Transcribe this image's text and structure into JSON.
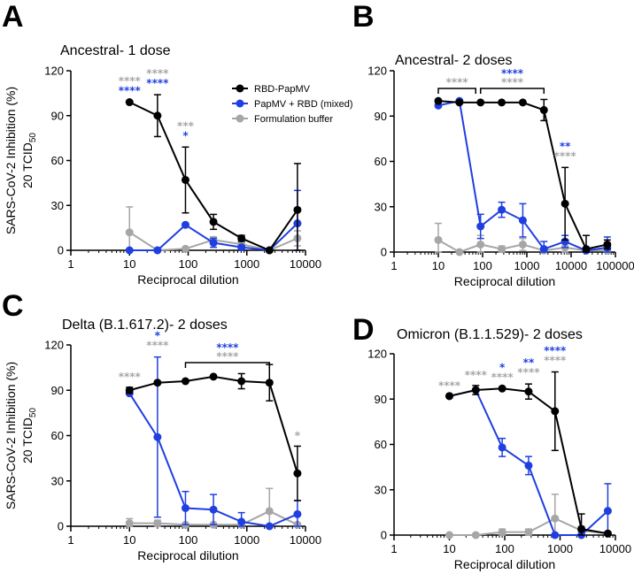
{
  "figure": {
    "y_axis_label": "SARS-CoV-2 Inhibition (%)",
    "y_axis_sublabel_main": "20 TCID",
    "y_axis_sublabel_sub": "50",
    "legend": [
      {
        "name": "RBD-PapMV",
        "color": "#000000"
      },
      {
        "name": "PapMV + RBD (mixed)",
        "color": "#1f3fe0"
      },
      {
        "name": "Formulation buffer",
        "color": "#a6a6a6"
      }
    ],
    "colors": {
      "black": "#000000",
      "blue": "#1f3fe0",
      "gray": "#a6a6a6"
    }
  },
  "chart_data": [
    {
      "panel": "A",
      "type": "line",
      "title": "Ancestral- 1 dose",
      "xlabel": "Reciprocal dilution",
      "ylabel": "SARS-CoV-2 Inhibition (%) 20 TCID50",
      "xscale": "log",
      "xlim": [
        1,
        10000
      ],
      "ylim": [
        0,
        120
      ],
      "xticks": [
        1,
        10,
        100,
        1000,
        10000
      ],
      "yticks": [
        0,
        30,
        60,
        90,
        120
      ],
      "series": [
        {
          "name": "RBD-PapMV",
          "color": "#000000",
          "x": [
            10,
            30,
            90,
            270,
            810,
            2430,
            7290
          ],
          "y": [
            99,
            90,
            47,
            19,
            8,
            0,
            27
          ],
          "err": [
            0,
            14,
            22,
            5,
            2,
            0,
            31
          ]
        },
        {
          "name": "PapMV + RBD (mixed)",
          "color": "#1f3fe0",
          "x": [
            10,
            30,
            90,
            270,
            810,
            2430,
            7290
          ],
          "y": [
            0,
            0,
            17,
            5,
            2,
            0,
            18
          ],
          "err": [
            0,
            0,
            0,
            3,
            1,
            0,
            22
          ]
        },
        {
          "name": "Formulation buffer",
          "color": "#a6a6a6",
          "x": [
            10,
            30,
            90,
            270,
            810,
            2430,
            7290
          ],
          "y": [
            12,
            0,
            1,
            7,
            4,
            0,
            8
          ],
          "err": [
            17,
            0,
            0,
            2,
            1,
            0,
            5
          ]
        }
      ],
      "annotations": [
        {
          "x": 10,
          "top": "****",
          "top_color": "#a6a6a6",
          "bottom": "****",
          "bottom_color": "#1f3fe0"
        },
        {
          "x": 30,
          "top": "****",
          "top_color": "#a6a6a6",
          "bottom": "****",
          "bottom_color": "#1f3fe0"
        },
        {
          "x": 90,
          "top": "***",
          "top_color": "#a6a6a6",
          "bottom": "*",
          "bottom_color": "#1f3fe0"
        }
      ],
      "brackets": []
    },
    {
      "panel": "B",
      "type": "line",
      "title": "Ancestral- 2 doses",
      "xlabel": "Reciprocal dilution",
      "ylabel": "",
      "xscale": "log",
      "xlim": [
        1,
        100000
      ],
      "ylim": [
        0,
        120
      ],
      "xticks": [
        1,
        10,
        100,
        1000,
        10000,
        100000
      ],
      "yticks": [
        0,
        30,
        60,
        90,
        120
      ],
      "series": [
        {
          "name": "RBD-PapMV",
          "color": "#000000",
          "x": [
            10,
            30,
            90,
            270,
            810,
            2430,
            7290,
            21870,
            65610
          ],
          "y": [
            100,
            99,
            99,
            99,
            99,
            94,
            32,
            2,
            5
          ],
          "err": [
            0,
            0,
            0,
            0,
            0,
            7,
            24,
            9,
            3
          ]
        },
        {
          "name": "PapMV + RBD (mixed)",
          "color": "#1f3fe0",
          "x": [
            10,
            30,
            90,
            270,
            810,
            2430,
            7290,
            21870,
            65610
          ],
          "y": [
            97,
            100,
            17,
            28,
            21,
            2,
            7,
            1,
            3
          ],
          "err": [
            0,
            0,
            8,
            5,
            11,
            5,
            4,
            1,
            7
          ]
        },
        {
          "name": "Formulation buffer",
          "color": "#a6a6a6",
          "x": [
            10,
            30,
            90,
            270,
            810,
            2430,
            7290,
            21870,
            65610
          ],
          "y": [
            8,
            0,
            5,
            2,
            5,
            1,
            3,
            1,
            1
          ],
          "err": [
            11,
            0,
            6,
            2,
            4,
            1,
            3,
            1,
            1
          ]
        }
      ],
      "annotations": [
        {
          "x": 7290,
          "top": "**",
          "top_color": "#1f3fe0",
          "bottom": "****",
          "bottom_color": "#a6a6a6"
        }
      ],
      "brackets": [
        {
          "x1": 10,
          "x2": 70,
          "labels": [
            {
              "text": "****",
              "color": "#a6a6a6"
            }
          ]
        },
        {
          "x1": 90,
          "x2": 2430,
          "labels": [
            {
              "text": "****",
              "color": "#1f3fe0"
            },
            {
              "text": "****",
              "color": "#a6a6a6"
            }
          ]
        }
      ]
    },
    {
      "panel": "C",
      "type": "line",
      "title": "Delta (B.1.617.2)- 2 doses",
      "xlabel": "Reciprocal dilution",
      "ylabel": "SARS-CoV-2 Inhibition (%) 20 TCID50",
      "xscale": "log",
      "xlim": [
        1,
        10000
      ],
      "ylim": [
        0,
        120
      ],
      "xticks": [
        1,
        10,
        100,
        1000,
        10000
      ],
      "yticks": [
        0,
        30,
        60,
        90,
        120
      ],
      "series": [
        {
          "name": "RBD-PapMV",
          "color": "#000000",
          "x": [
            10,
            30,
            90,
            270,
            810,
            2430,
            7290
          ],
          "y": [
            90,
            95,
            96,
            99,
            96,
            95,
            35
          ],
          "err": [
            2,
            0,
            0,
            0,
            5,
            12,
            18
          ]
        },
        {
          "name": "PapMV + RBD (mixed)",
          "color": "#1f3fe0",
          "x": [
            10,
            30,
            90,
            270,
            810,
            2430,
            7290
          ],
          "y": [
            88,
            59,
            12,
            11,
            3,
            0,
            8
          ],
          "err": [
            0,
            53,
            11,
            10,
            6,
            0,
            9
          ]
        },
        {
          "name": "Formulation buffer",
          "color": "#a6a6a6",
          "x": [
            10,
            30,
            90,
            270,
            810,
            2430,
            7290
          ],
          "y": [
            2,
            2,
            1,
            1,
            1,
            10,
            1
          ],
          "err": [
            3,
            2,
            1,
            1,
            1,
            15,
            1
          ]
        }
      ],
      "annotations": [
        {
          "x": 10,
          "top": "****",
          "top_color": "#a6a6a6",
          "bottom": "",
          "bottom_color": "#a6a6a6"
        },
        {
          "x": 30,
          "top": "*",
          "top_color": "#1f3fe0",
          "bottom": "****",
          "bottom_color": "#a6a6a6"
        },
        {
          "x": 7290,
          "top": "*",
          "top_color": "#a6a6a6",
          "bottom": "",
          "bottom_color": "#a6a6a6"
        }
      ],
      "brackets": [
        {
          "x1": 90,
          "x2": 2430,
          "labels": [
            {
              "text": "****",
              "color": "#1f3fe0"
            },
            {
              "text": "****",
              "color": "#a6a6a6"
            }
          ]
        }
      ]
    },
    {
      "panel": "D",
      "type": "line",
      "title": "Omicron (B.1.1.529)- 2 doses",
      "xlabel": "Reciprocal dilution",
      "ylabel": "",
      "xscale": "log",
      "xlim": [
        1,
        10000
      ],
      "ylim": [
        0,
        120
      ],
      "xticks": [
        1,
        10,
        100,
        1000,
        10000
      ],
      "yticks": [
        0,
        30,
        60,
        90,
        120
      ],
      "series": [
        {
          "name": "RBD-PapMV",
          "color": "#000000",
          "x": [
            10,
            30,
            90,
            270,
            810,
            2430,
            7290
          ],
          "y": [
            92,
            96,
            97,
            95,
            82,
            4,
            1
          ],
          "err": [
            0,
            3,
            0,
            5,
            26,
            10,
            1
          ]
        },
        {
          "name": "PapMV + RBD (mixed)",
          "color": "#1f3fe0",
          "x": [
            10,
            30,
            90,
            270,
            810,
            2430,
            7290
          ],
          "y": [
            92,
            96,
            58,
            46,
            0,
            0,
            16
          ],
          "err": [
            0,
            0,
            6,
            6,
            0,
            0,
            18
          ]
        },
        {
          "name": "Formulation buffer",
          "color": "#a6a6a6",
          "x": [
            10,
            30,
            90,
            270,
            810,
            2430,
            7290
          ],
          "y": [
            0,
            0,
            2,
            2,
            11,
            3,
            1
          ],
          "err": [
            0,
            0,
            2,
            2,
            16,
            3,
            1
          ]
        }
      ],
      "annotations": [
        {
          "x": 10,
          "top": "****",
          "top_color": "#a6a6a6",
          "bottom": "",
          "bottom_color": "#a6a6a6"
        },
        {
          "x": 30,
          "top": "****",
          "top_color": "#a6a6a6",
          "bottom": "",
          "bottom_color": "#a6a6a6"
        },
        {
          "x": 90,
          "top": "*",
          "top_color": "#1f3fe0",
          "bottom": "****",
          "bottom_color": "#a6a6a6"
        },
        {
          "x": 270,
          "top": "**",
          "top_color": "#1f3fe0",
          "bottom": "****",
          "bottom_color": "#a6a6a6"
        },
        {
          "x": 810,
          "top": "****",
          "top_color": "#1f3fe0",
          "bottom": "****",
          "bottom_color": "#a6a6a6"
        }
      ],
      "brackets": []
    }
  ]
}
